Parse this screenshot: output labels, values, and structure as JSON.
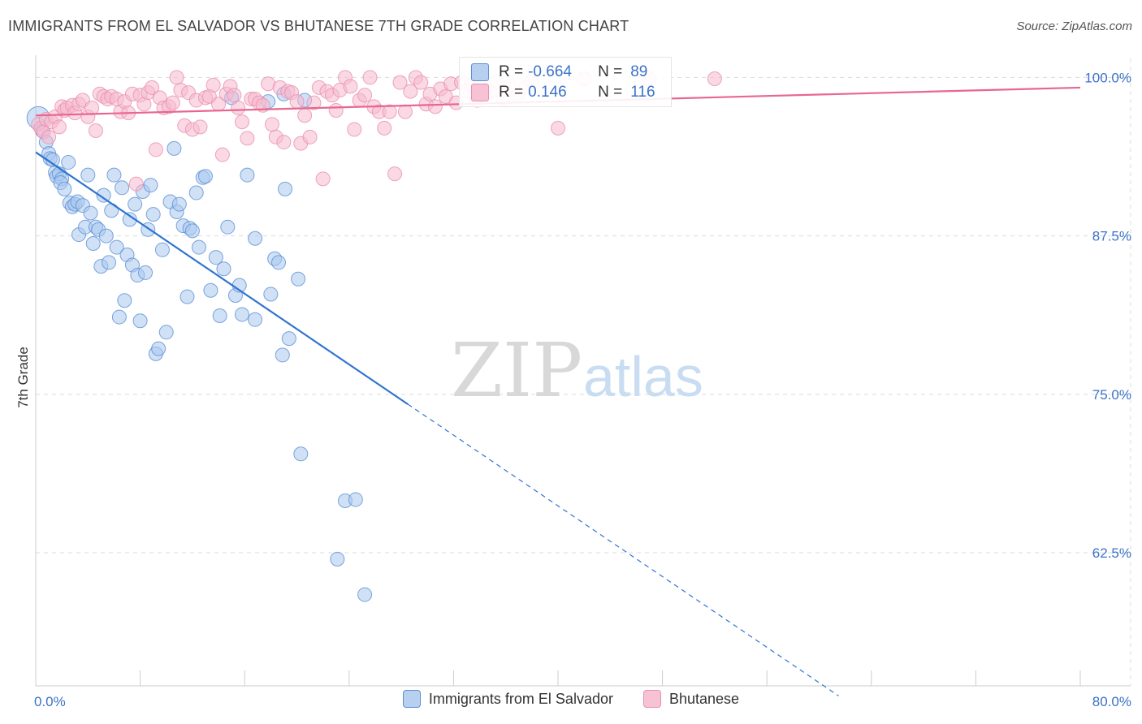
{
  "title": "IMMIGRANTS FROM EL SALVADOR VS BHUTANESE 7TH GRADE CORRELATION CHART",
  "source": "Source: ZipAtlas.com",
  "watermark": {
    "zip": "ZIP",
    "atlas": "atlas"
  },
  "colors": {
    "blue_fill": "#a9c8ef",
    "blue_stroke": "#5a8fd6",
    "blue_line": "#2f74d0",
    "pink_fill": "#f5b9cd",
    "pink_stroke": "#ea8fb0",
    "pink_line": "#e8678f",
    "tick_label": "#3b72c8",
    "grid": "#dcdcdc"
  },
  "stats": [
    {
      "r_label": "R =",
      "r_value": "-0.664",
      "n_label": "N =",
      "n_value": "89"
    },
    {
      "r_label": "R =",
      "r_value": "0.146",
      "n_label": "N =",
      "n_value": "116"
    }
  ],
  "chart_data": {
    "type": "scatter",
    "title": "IMMIGRANTS FROM EL SALVADOR VS BHUTANESE 7TH GRADE CORRELATION CHART",
    "xlabel": "",
    "ylabel": "7th Grade",
    "xlim": [
      0,
      80
    ],
    "ylim": [
      52,
      101.5
    ],
    "x_tick_labels": [
      "0.0%",
      "80.0%"
    ],
    "y_ticks": [
      62.5,
      75.0,
      87.5,
      100.0
    ],
    "y_tick_labels": [
      "62.5%",
      "75.0%",
      "87.5%",
      "100.0%"
    ],
    "grid": true,
    "legend_position": "bottom",
    "series": [
      {
        "name": "Immigrants from El Salvador",
        "color": "#a9c8ef",
        "trend": {
          "x0": 0,
          "y0": 94.1,
          "x1": 80,
          "y1": 38.3,
          "solid_until_x": 28.5
        },
        "points": [
          [
            0.2,
            96.8
          ],
          [
            0.5,
            95.8
          ],
          [
            0.8,
            94.9
          ],
          [
            1.0,
            94.0
          ],
          [
            1.1,
            93.6
          ],
          [
            1.3,
            93.5
          ],
          [
            1.5,
            92.5
          ],
          [
            1.6,
            92.2
          ],
          [
            1.8,
            92.4
          ],
          [
            2.0,
            92.0
          ],
          [
            1.9,
            91.7
          ],
          [
            2.2,
            91.2
          ],
          [
            2.5,
            93.3
          ],
          [
            2.6,
            90.1
          ],
          [
            2.8,
            89.8
          ],
          [
            3.0,
            90.0
          ],
          [
            3.2,
            90.2
          ],
          [
            3.3,
            87.6
          ],
          [
            3.6,
            89.9
          ],
          [
            3.8,
            88.2
          ],
          [
            4.0,
            92.3
          ],
          [
            4.2,
            89.3
          ],
          [
            4.4,
            86.9
          ],
          [
            4.6,
            88.2
          ],
          [
            4.8,
            88.0
          ],
          [
            5.0,
            85.1
          ],
          [
            5.2,
            90.7
          ],
          [
            5.4,
            87.5
          ],
          [
            5.6,
            85.4
          ],
          [
            5.8,
            89.5
          ],
          [
            6.0,
            92.3
          ],
          [
            6.2,
            86.6
          ],
          [
            6.4,
            81.1
          ],
          [
            6.6,
            91.3
          ],
          [
            6.8,
            82.4
          ],
          [
            7.0,
            86.0
          ],
          [
            7.2,
            88.8
          ],
          [
            7.4,
            85.2
          ],
          [
            7.6,
            90.0
          ],
          [
            7.8,
            84.4
          ],
          [
            8.0,
            80.8
          ],
          [
            8.2,
            91.0
          ],
          [
            8.4,
            84.6
          ],
          [
            8.6,
            88.0
          ],
          [
            8.8,
            91.5
          ],
          [
            9.0,
            89.2
          ],
          [
            9.2,
            78.2
          ],
          [
            9.4,
            78.6
          ],
          [
            9.7,
            86.4
          ],
          [
            10.0,
            79.9
          ],
          [
            10.3,
            90.2
          ],
          [
            10.6,
            94.4
          ],
          [
            10.8,
            89.4
          ],
          [
            11.0,
            90.0
          ],
          [
            11.3,
            88.3
          ],
          [
            11.6,
            82.7
          ],
          [
            11.8,
            88.1
          ],
          [
            12.0,
            87.9
          ],
          [
            12.3,
            90.9
          ],
          [
            12.5,
            86.6
          ],
          [
            12.8,
            92.1
          ],
          [
            13.0,
            92.2
          ],
          [
            13.4,
            83.2
          ],
          [
            13.8,
            85.8
          ],
          [
            14.1,
            81.2
          ],
          [
            14.4,
            84.9
          ],
          [
            14.7,
            88.2
          ],
          [
            15.0,
            98.4
          ],
          [
            15.3,
            82.8
          ],
          [
            15.6,
            83.6
          ],
          [
            15.8,
            81.3
          ],
          [
            16.2,
            92.3
          ],
          [
            16.8,
            87.3
          ],
          [
            16.8,
            80.9
          ],
          [
            17.8,
            98.1
          ],
          [
            18.0,
            82.9
          ],
          [
            18.3,
            85.7
          ],
          [
            18.6,
            85.4
          ],
          [
            18.9,
            78.1
          ],
          [
            19.1,
            91.2
          ],
          [
            19.4,
            79.4
          ],
          [
            20.1,
            84.1
          ],
          [
            20.3,
            70.3
          ],
          [
            20.6,
            98.2
          ],
          [
            23.7,
            66.6
          ],
          [
            24.5,
            66.7
          ],
          [
            23.1,
            62.0
          ],
          [
            25.2,
            59.2
          ],
          [
            19.0,
            98.7
          ]
        ]
      },
      {
        "name": "Bhutanese",
        "color": "#f5b9cd",
        "trend": {
          "x0": 0,
          "y0": 97.0,
          "x1": 80,
          "y1": 99.2
        },
        "points": [
          [
            0.2,
            96.3
          ],
          [
            0.4,
            96.0
          ],
          [
            0.6,
            95.7
          ],
          [
            0.8,
            96.7
          ],
          [
            1.0,
            95.3
          ],
          [
            1.2,
            96.5
          ],
          [
            1.5,
            96.9
          ],
          [
            1.8,
            96.1
          ],
          [
            2.0,
            97.7
          ],
          [
            2.2,
            97.4
          ],
          [
            2.4,
            97.6
          ],
          [
            2.8,
            97.8
          ],
          [
            3.0,
            97.2
          ],
          [
            3.3,
            97.9
          ],
          [
            3.6,
            98.2
          ],
          [
            4.0,
            96.9
          ],
          [
            4.3,
            97.6
          ],
          [
            4.6,
            95.8
          ],
          [
            4.9,
            98.7
          ],
          [
            5.2,
            98.5
          ],
          [
            5.5,
            98.3
          ],
          [
            5.8,
            98.5
          ],
          [
            6.2,
            98.3
          ],
          [
            6.5,
            97.3
          ],
          [
            6.8,
            98.1
          ],
          [
            7.1,
            97.2
          ],
          [
            7.4,
            98.7
          ],
          [
            7.7,
            91.6
          ],
          [
            8.0,
            98.6
          ],
          [
            8.3,
            97.9
          ],
          [
            8.6,
            98.8
          ],
          [
            8.9,
            99.2
          ],
          [
            9.2,
            94.3
          ],
          [
            9.5,
            98.4
          ],
          [
            9.8,
            97.6
          ],
          [
            10.2,
            97.7
          ],
          [
            10.5,
            98.0
          ],
          [
            10.8,
            100.0
          ],
          [
            11.1,
            99.0
          ],
          [
            11.4,
            96.2
          ],
          [
            11.7,
            98.8
          ],
          [
            12.0,
            95.9
          ],
          [
            12.3,
            98.2
          ],
          [
            12.6,
            96.1
          ],
          [
            13.0,
            98.4
          ],
          [
            13.3,
            98.5
          ],
          [
            13.6,
            99.4
          ],
          [
            14.0,
            97.9
          ],
          [
            14.3,
            93.9
          ],
          [
            14.6,
            98.7
          ],
          [
            14.9,
            99.3
          ],
          [
            15.2,
            98.6
          ],
          [
            15.5,
            97.6
          ],
          [
            15.8,
            96.5
          ],
          [
            16.2,
            95.2
          ],
          [
            16.5,
            98.3
          ],
          [
            16.8,
            98.3
          ],
          [
            17.1,
            98.0
          ],
          [
            17.4,
            97.8
          ],
          [
            17.8,
            99.5
          ],
          [
            18.1,
            96.3
          ],
          [
            18.4,
            95.3
          ],
          [
            18.7,
            99.2
          ],
          [
            19.0,
            94.9
          ],
          [
            19.3,
            98.9
          ],
          [
            19.6,
            98.8
          ],
          [
            20.0,
            98.1
          ],
          [
            20.3,
            94.8
          ],
          [
            20.6,
            97.0
          ],
          [
            21.0,
            95.3
          ],
          [
            21.3,
            98.0
          ],
          [
            21.7,
            99.2
          ],
          [
            22.0,
            92.0
          ],
          [
            22.3,
            98.9
          ],
          [
            22.7,
            98.6
          ],
          [
            23.0,
            97.4
          ],
          [
            23.3,
            99.0
          ],
          [
            23.7,
            100.0
          ],
          [
            24.1,
            99.3
          ],
          [
            24.4,
            95.9
          ],
          [
            24.8,
            98.2
          ],
          [
            25.2,
            98.6
          ],
          [
            25.6,
            100.0
          ],
          [
            25.9,
            97.7
          ],
          [
            26.3,
            97.3
          ],
          [
            26.7,
            96.0
          ],
          [
            27.1,
            97.3
          ],
          [
            27.5,
            92.4
          ],
          [
            27.9,
            99.6
          ],
          [
            28.3,
            97.3
          ],
          [
            28.7,
            98.9
          ],
          [
            29.1,
            100.0
          ],
          [
            29.5,
            99.6
          ],
          [
            29.9,
            97.9
          ],
          [
            30.2,
            98.7
          ],
          [
            30.6,
            97.7
          ],
          [
            31.0,
            99.1
          ],
          [
            31.4,
            98.5
          ],
          [
            31.8,
            99.5
          ],
          [
            32.2,
            98.0
          ],
          [
            32.6,
            99.6
          ],
          [
            33.0,
            98.9
          ],
          [
            33.4,
            99.4
          ],
          [
            33.8,
            98.2
          ],
          [
            34.3,
            99.0
          ],
          [
            34.8,
            98.9
          ],
          [
            35.3,
            99.7
          ],
          [
            35.8,
            98.3
          ],
          [
            36.3,
            99.3
          ],
          [
            36.9,
            98.6
          ],
          [
            37.5,
            99.2
          ],
          [
            38.0,
            99.7
          ],
          [
            40.0,
            96.0
          ],
          [
            42.0,
            99.9
          ],
          [
            47.0,
            99.9
          ],
          [
            52.0,
            99.9
          ]
        ]
      }
    ]
  },
  "outliers_note_free": true
}
